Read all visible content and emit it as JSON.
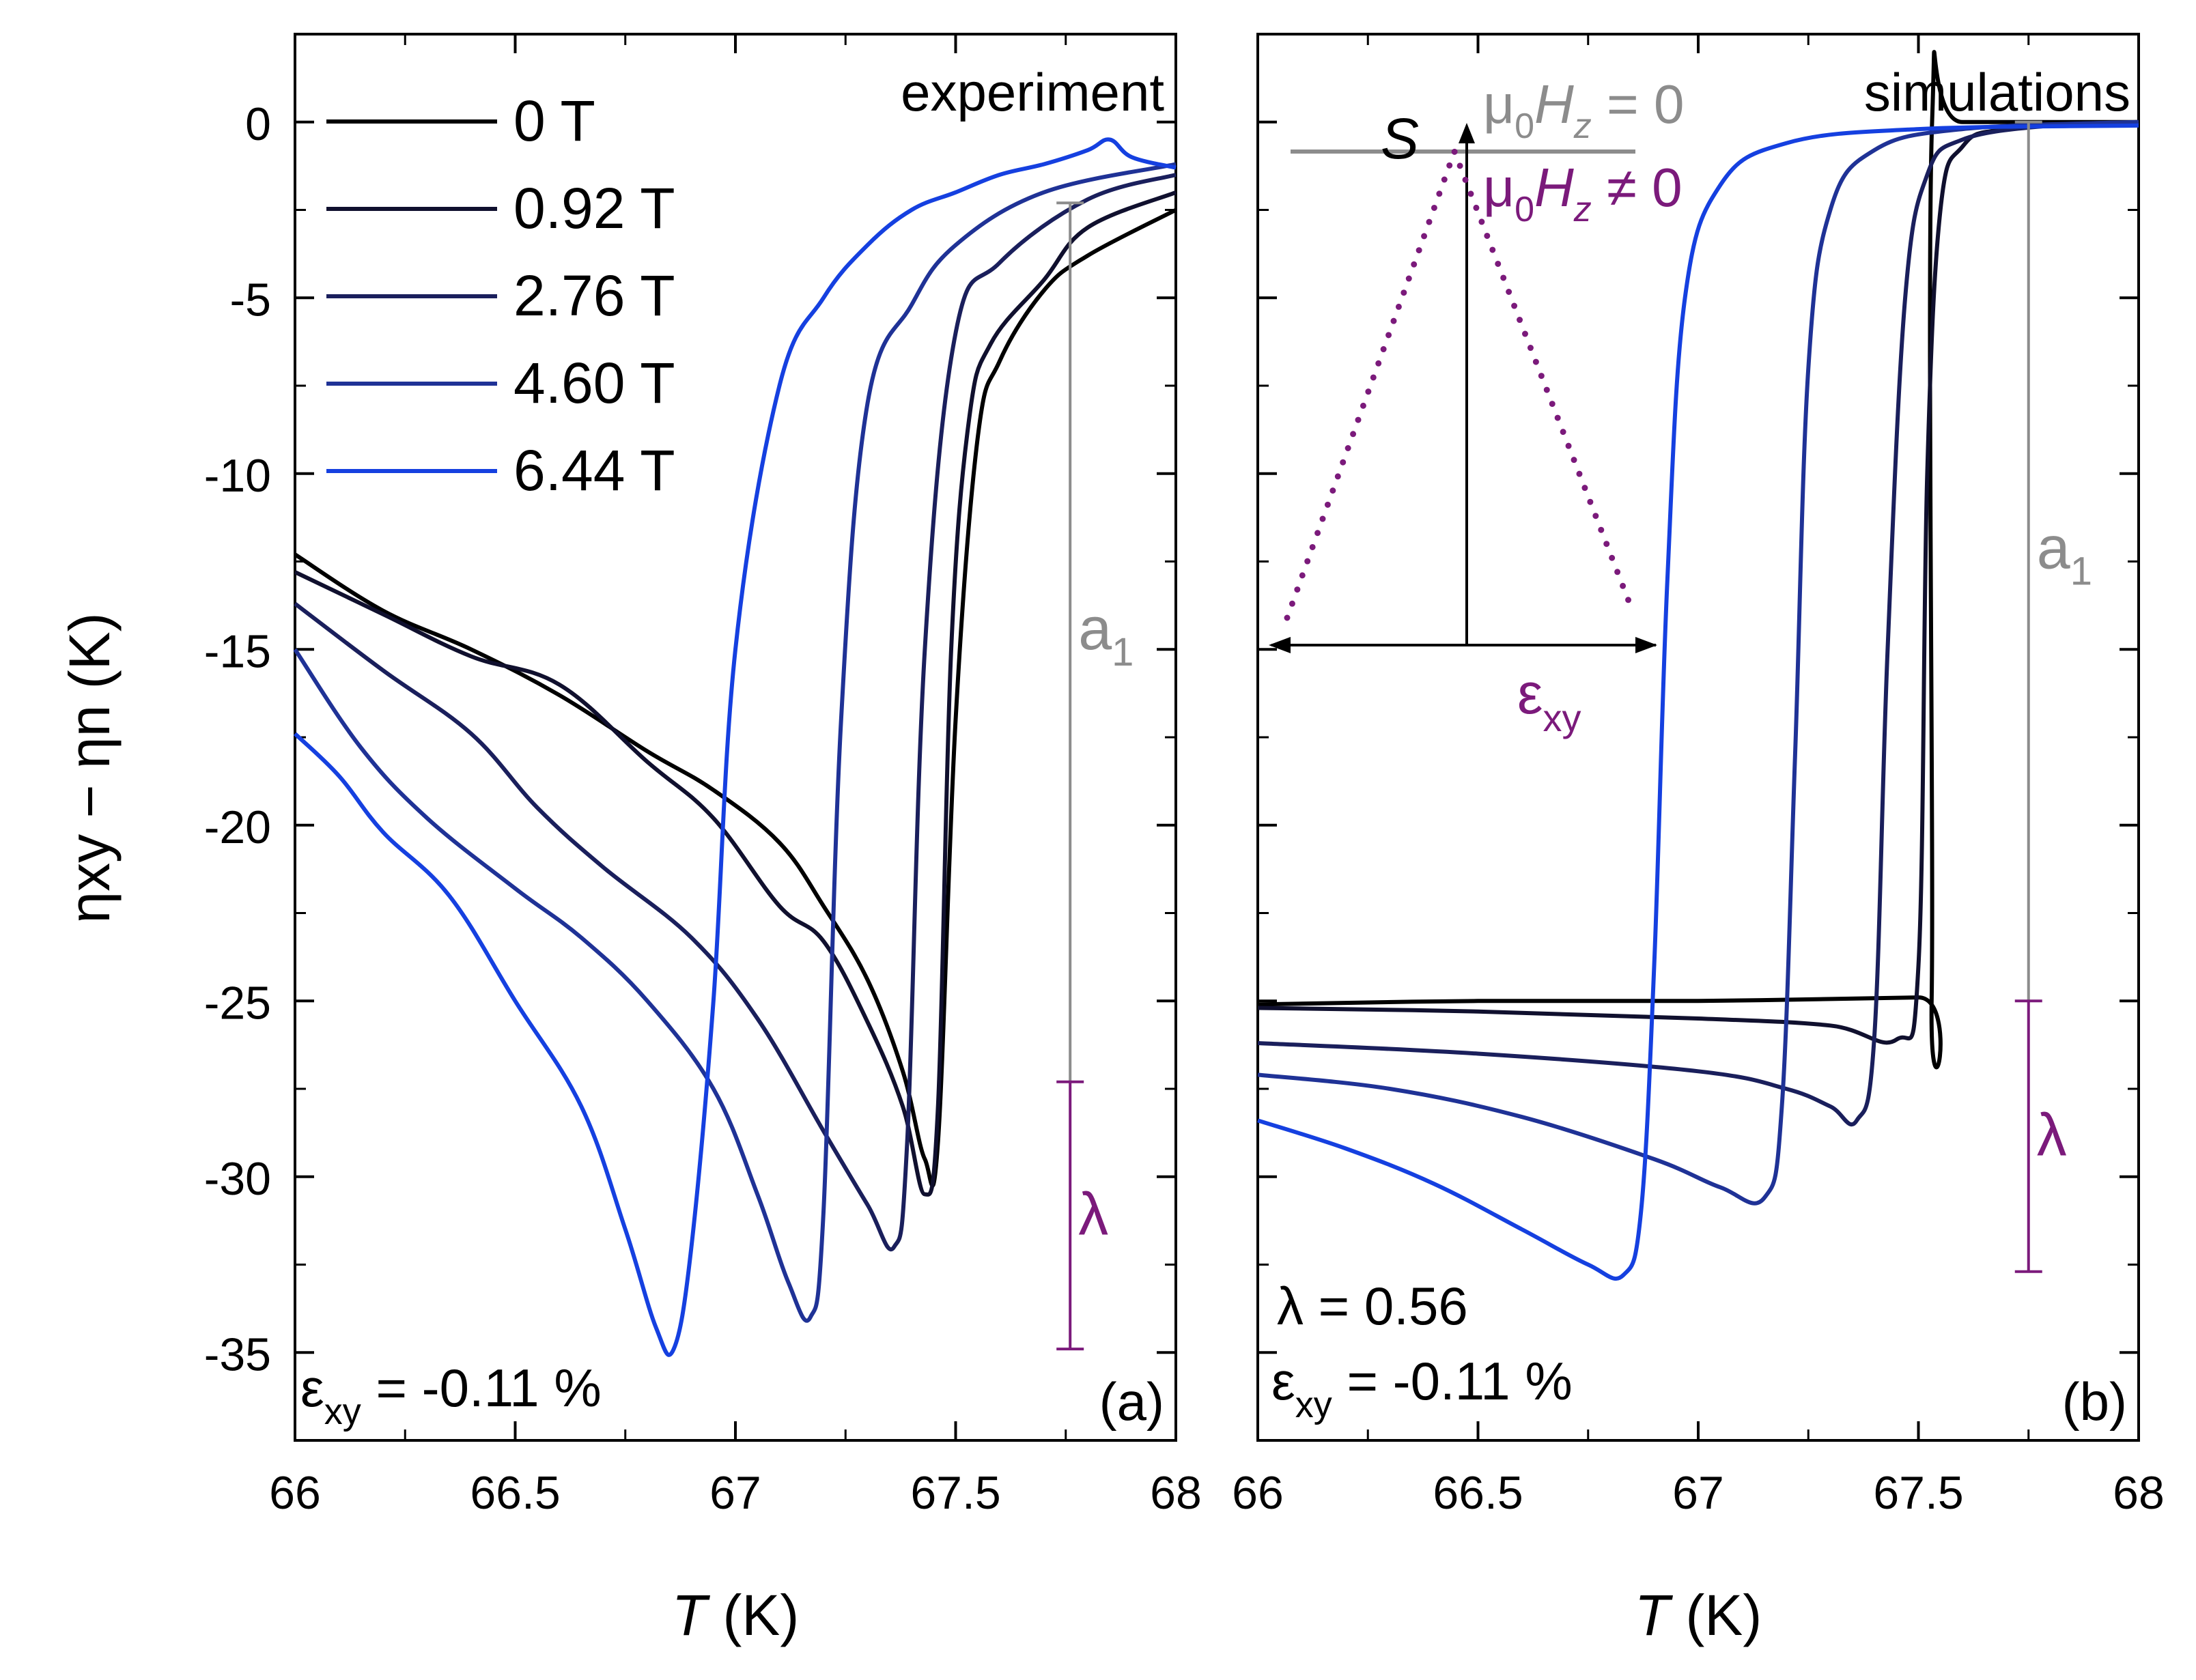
{
  "figure": {
    "ylabel": "ηxy − ηn (K)",
    "colors": {
      "0 T": "#000000",
      "0.92 T": "#10102e",
      "2.76 T": "#1a1f5c",
      "4.60 T": "#1f3296",
      "6.44 T": "#1540e0",
      "annotation_gray": "#8c8c8c",
      "lambda_purple": "#7b1a7b"
    }
  },
  "chart_data": [
    {
      "type": "line",
      "panel_label": "(a)",
      "corner_label": "experiment",
      "xlabel": "T (K)",
      "ylabel": "ηxy − ηn (K)",
      "xlim": [
        66,
        68
      ],
      "ylim": [
        -37.5,
        2.5
      ],
      "xticks": [
        "66",
        "66.5",
        "67",
        "67.5",
        "68"
      ],
      "yticks": [
        "0",
        "-5",
        "-10",
        "-15",
        "-20",
        "-25",
        "-30",
        "-35"
      ],
      "strain_label": "εxy = -0.11 %",
      "a1_label": "a1",
      "lambda_label": "λ",
      "a1_bar": {
        "x": 67.76,
        "y_top": -2.3,
        "y_bottom": -27.3
      },
      "lambda_bar": {
        "x": 67.76,
        "y_top": -27.3,
        "y_bottom": -34.9
      },
      "legend": [
        "0 T",
        "0.92 T",
        "2.76 T",
        "4.60 T",
        "6.44 T"
      ],
      "series": [
        {
          "name": "0 T",
          "x": [
            66.0,
            66.2,
            66.4,
            66.6,
            66.8,
            66.95,
            67.1,
            67.2,
            67.3,
            67.38,
            67.43,
            67.46,
            67.5,
            67.55,
            67.6,
            67.7,
            67.8,
            68.0
          ],
          "y": [
            -12.3,
            -13.9,
            -15.0,
            -16.3,
            -17.9,
            -19.0,
            -20.5,
            -22.3,
            -24.4,
            -27.0,
            -29.5,
            -29.0,
            -17.0,
            -9.0,
            -6.8,
            -4.8,
            -3.8,
            -2.5
          ]
        },
        {
          "name": "0.92 T",
          "x": [
            66.0,
            66.2,
            66.4,
            66.6,
            66.8,
            66.95,
            67.1,
            67.2,
            67.3,
            67.38,
            67.43,
            67.46,
            67.49,
            67.53,
            67.58,
            67.7,
            67.8,
            68.0
          ],
          "y": [
            -12.8,
            -14.0,
            -15.2,
            -16.0,
            -18.2,
            -19.8,
            -22.3,
            -23.3,
            -25.6,
            -28.0,
            -30.5,
            -28.0,
            -15.0,
            -8.5,
            -6.3,
            -4.5,
            -3.0,
            -2.0
          ]
        },
        {
          "name": "2.76 T",
          "x": [
            66.0,
            66.2,
            66.4,
            66.55,
            66.7,
            66.9,
            67.05,
            67.2,
            67.3,
            67.36,
            67.39,
            67.43,
            67.5,
            67.6,
            67.8,
            68.0
          ],
          "y": [
            -13.7,
            -15.6,
            -17.4,
            -19.5,
            -21.2,
            -23.2,
            -25.5,
            -28.7,
            -30.8,
            -32.0,
            -29.0,
            -15.0,
            -6.0,
            -4.0,
            -2.2,
            -1.5
          ]
        },
        {
          "name": "4.60 T",
          "x": [
            66.0,
            66.15,
            66.3,
            66.5,
            66.65,
            66.8,
            66.95,
            67.05,
            67.12,
            67.17,
            67.2,
            67.24,
            67.3,
            67.4,
            67.5,
            67.7,
            68.0
          ],
          "y": [
            -15.0,
            -17.8,
            -19.8,
            -21.8,
            -23.2,
            -25.0,
            -27.5,
            -30.5,
            -33.0,
            -34.0,
            -31.0,
            -17.0,
            -8.0,
            -5.2,
            -3.5,
            -2.0,
            -1.2
          ]
        },
        {
          "name": "6.44 T",
          "x": [
            66.0,
            66.1,
            66.2,
            66.35,
            66.5,
            66.65,
            66.75,
            66.82,
            66.86,
            66.9,
            66.95,
            67.0,
            67.1,
            67.2,
            67.3,
            67.4,
            67.5,
            67.6,
            67.7,
            67.8,
            67.85,
            67.9,
            68.0
          ],
          "y": [
            -17.4,
            -18.6,
            -20.2,
            -22.0,
            -25.0,
            -28.0,
            -31.5,
            -34.3,
            -34.9,
            -32.0,
            -25.0,
            -15.0,
            -7.5,
            -5.0,
            -3.5,
            -2.5,
            -2.0,
            -1.5,
            -1.2,
            -0.8,
            -0.5,
            -1.0,
            -1.3
          ]
        }
      ]
    },
    {
      "type": "line",
      "panel_label": "(b)",
      "corner_label": "simulations",
      "xlabel": "T (K)",
      "xlim": [
        66,
        68
      ],
      "ylim": [
        -37.5,
        2.5
      ],
      "xticks": [
        "66",
        "66.5",
        "67",
        "67.5",
        "68"
      ],
      "yticks": [],
      "lambda_text": "λ = 0.56",
      "strain_label": "εxy = -0.11 %",
      "a1_label": "a1",
      "lambda_label": "λ",
      "a1_bar": {
        "x": 67.75,
        "y_top": 0.0,
        "y_bottom": -25.0
      },
      "lambda_bar": {
        "x": 67.75,
        "y_top": -25.0,
        "y_bottom": -32.7
      },
      "inset": {
        "s_label": "S",
        "eps_label": "εxy",
        "h0_label": "μ0Hz = 0",
        "hnz_label": "μ0Hz ≠ 0"
      },
      "series": [
        {
          "name": "0 T",
          "x": [
            66.0,
            66.5,
            67.0,
            67.5,
            67.53,
            67.531,
            67.6,
            68.0
          ],
          "y": [
            -25.1,
            -25.0,
            -25.0,
            -24.9,
            -24.9,
            0.0,
            0.0,
            0.0
          ]
        },
        {
          "name": "0.92 T",
          "x": [
            66.0,
            66.5,
            67.0,
            67.3,
            67.45,
            67.5,
            67.52,
            67.55,
            67.6,
            67.7,
            68.0
          ],
          "y": [
            -25.2,
            -25.3,
            -25.5,
            -25.7,
            -26.1,
            -24.0,
            -10.0,
            -2.5,
            -0.7,
            -0.2,
            0.0
          ]
        },
        {
          "name": "2.76 T",
          "x": [
            66.0,
            66.5,
            67.0,
            67.2,
            67.3,
            67.36,
            67.4,
            67.43,
            67.47,
            67.52,
            67.6,
            67.8,
            68.0
          ],
          "y": [
            -26.2,
            -26.5,
            -27.0,
            -27.5,
            -28.0,
            -28.4,
            -26.0,
            -15.0,
            -5.0,
            -1.5,
            -0.5,
            -0.1,
            0.0
          ]
        },
        {
          "name": "4.60 T",
          "x": [
            66.0,
            66.3,
            66.6,
            66.9,
            67.05,
            67.15,
            67.19,
            67.22,
            67.25,
            67.3,
            67.4,
            67.6,
            68.0
          ],
          "y": [
            -27.1,
            -27.5,
            -28.3,
            -29.5,
            -30.3,
            -30.6,
            -28.0,
            -18.0,
            -7.0,
            -2.5,
            -0.8,
            -0.2,
            0.0
          ]
        },
        {
          "name": "6.44 T",
          "x": [
            66.0,
            66.2,
            66.4,
            66.6,
            66.75,
            66.83,
            66.87,
            66.9,
            66.93,
            66.97,
            67.05,
            67.2,
            67.5,
            68.0
          ],
          "y": [
            -28.4,
            -29.2,
            -30.2,
            -31.5,
            -32.5,
            -32.8,
            -31.0,
            -24.0,
            -13.0,
            -5.0,
            -1.8,
            -0.6,
            -0.2,
            -0.1
          ]
        }
      ]
    }
  ]
}
